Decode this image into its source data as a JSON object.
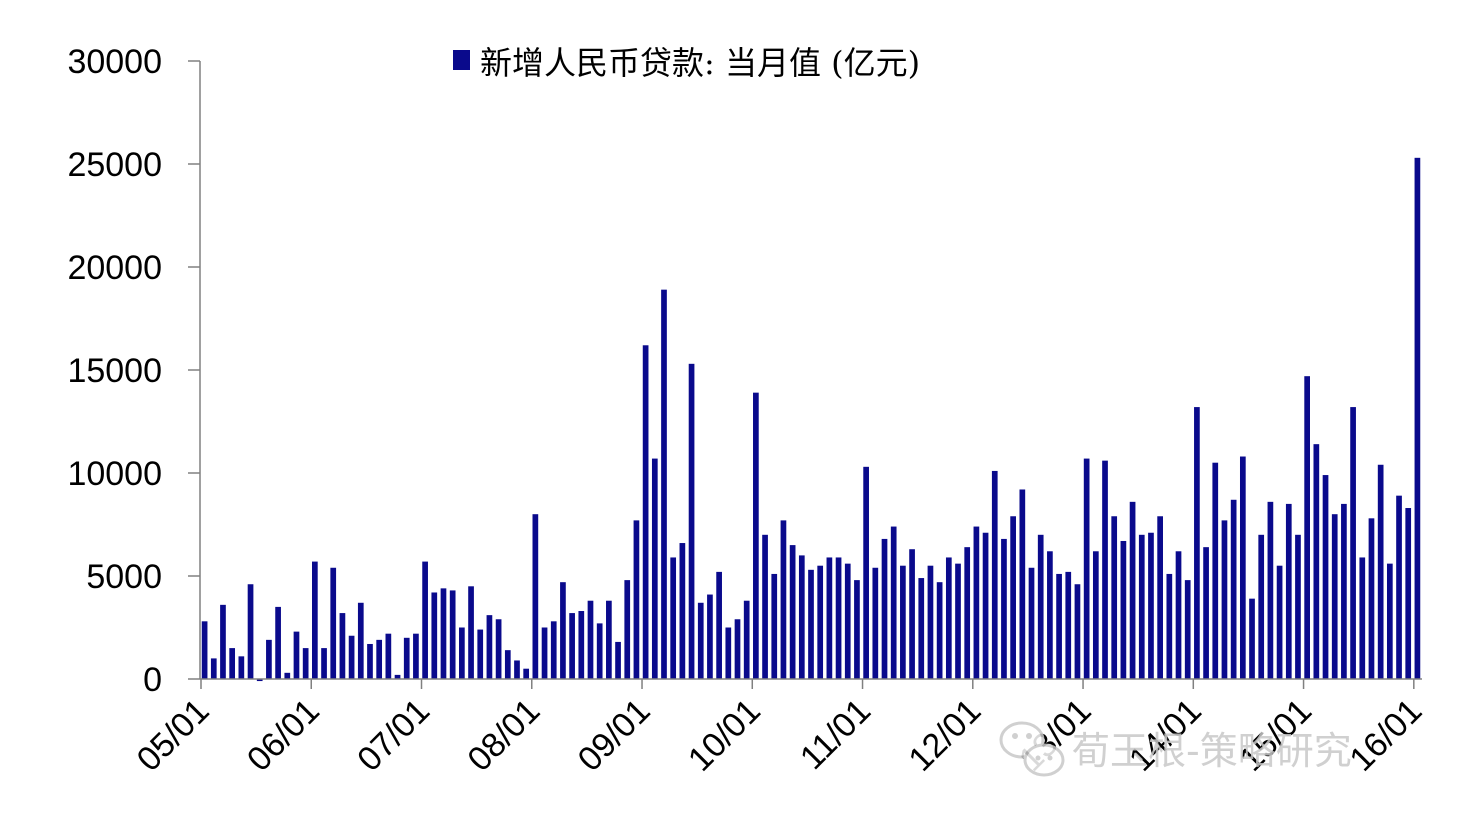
{
  "chart_data": {
    "type": "bar",
    "legend": {
      "label": "新增人民币贷款: 当月值 (亿元)",
      "placement": "top-center"
    },
    "colors": {
      "bar": "#0a0a8c",
      "axis": "#808080"
    },
    "ylim": [
      0,
      30000
    ],
    "yticks": [
      "30000",
      "25000",
      "20000",
      "15000",
      "10000",
      "5000",
      "0"
    ],
    "ytick_values": [
      30000,
      25000,
      20000,
      15000,
      10000,
      5000,
      0
    ],
    "xtick_labels": [
      "05/01",
      "06/01",
      "07/01",
      "08/01",
      "09/01",
      "10/01",
      "11/01",
      "12/01",
      "13/01",
      "14/01",
      "15/01",
      "16/01"
    ],
    "xtick_indices": [
      0,
      12,
      24,
      36,
      48,
      60,
      72,
      84,
      96,
      108,
      120,
      132
    ],
    "grid": false,
    "x_start": "2005-01",
    "x_end": "2016-01",
    "values": [
      2800,
      1000,
      3600,
      1500,
      1100,
      4600,
      -100,
      1900,
      3500,
      300,
      2300,
      1500,
      5700,
      1500,
      5400,
      3200,
      2100,
      3700,
      1700,
      1900,
      2200,
      200,
      2000,
      2200,
      5700,
      4200,
      4400,
      4300,
      2500,
      4500,
      2400,
      3100,
      2900,
      1400,
      900,
      500,
      8000,
      2500,
      2800,
      4700,
      3200,
      3300,
      3800,
      2700,
      3800,
      1800,
      4800,
      7700,
      16200,
      10700,
      18900,
      5900,
      6600,
      15300,
      3700,
      4100,
      5200,
      2500,
      2900,
      3800,
      13900,
      7000,
      5100,
      7700,
      6500,
      6000,
      5300,
      5500,
      5900,
      5900,
      5600,
      4800,
      10300,
      5400,
      6800,
      7400,
      5500,
      6300,
      4900,
      5500,
      4700,
      5900,
      5600,
      6400,
      7400,
      7100,
      10100,
      6800,
      7900,
      9200,
      5400,
      7000,
      6200,
      5100,
      5200,
      4600,
      10700,
      6200,
      10600,
      7900,
      6700,
      8600,
      7000,
      7100,
      7900,
      5100,
      6200,
      4800,
      13200,
      6400,
      10500,
      7700,
      8700,
      10800,
      3900,
      7000,
      8600,
      5500,
      8500,
      7000,
      14700,
      11400,
      9900,
      8000,
      8500,
      13200,
      5900,
      7800,
      10400,
      5600,
      8900,
      8300,
      25300
    ]
  },
  "watermark": {
    "text": "荀玉根-策略研究",
    "icon": "wechat-icon"
  }
}
